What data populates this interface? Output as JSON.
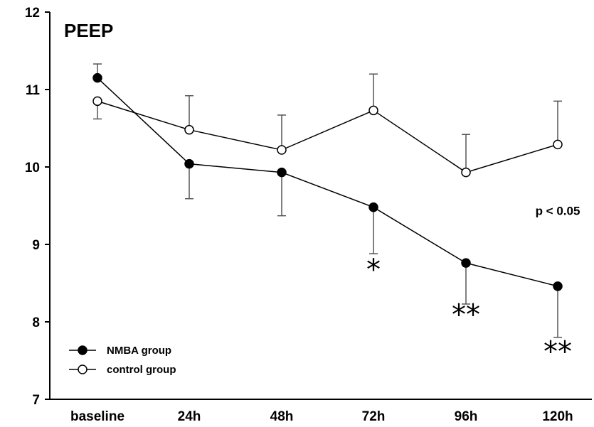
{
  "chart_data": {
    "type": "line",
    "title": "PEEP",
    "xlabel": "",
    "ylabel": "",
    "categories": [
      "baseline",
      "24h",
      "48h",
      "72h",
      "96h",
      "120h"
    ],
    "ylim": [
      7,
      12
    ],
    "yticks": [
      "7",
      "8",
      "9",
      "10",
      "11",
      "12"
    ],
    "grid": false,
    "legend_position": "bottom-left",
    "series": [
      {
        "name": "NMBA group",
        "marker": "filled-circle",
        "color": "#000000",
        "values": [
          11.15,
          10.04,
          9.93,
          9.48,
          8.76,
          8.46
        ],
        "error_dir": [
          1,
          -1,
          -1,
          -1,
          -1,
          -1
        ],
        "errors": [
          0.18,
          0.45,
          0.56,
          0.6,
          0.53,
          0.66
        ]
      },
      {
        "name": "control group",
        "marker": "open-circle",
        "color": "#000000",
        "values": [
          10.85,
          10.48,
          10.22,
          10.73,
          9.93,
          10.29
        ],
        "error_dir": [
          -1,
          1,
          1,
          1,
          1,
          1
        ],
        "errors": [
          0.23,
          0.44,
          0.45,
          0.47,
          0.49,
          0.56
        ]
      }
    ],
    "annotations": [
      {
        "text": "*",
        "category_index": 3,
        "y": 8.55,
        "kind": "star"
      },
      {
        "text": "**",
        "category_index": 4,
        "y": 7.97,
        "kind": "star"
      },
      {
        "text": "**",
        "category_index": 5,
        "y": 7.49,
        "kind": "star"
      },
      {
        "text": "p < 0.05",
        "category_index": 5,
        "y": 9.38,
        "kind": "text"
      }
    ]
  }
}
